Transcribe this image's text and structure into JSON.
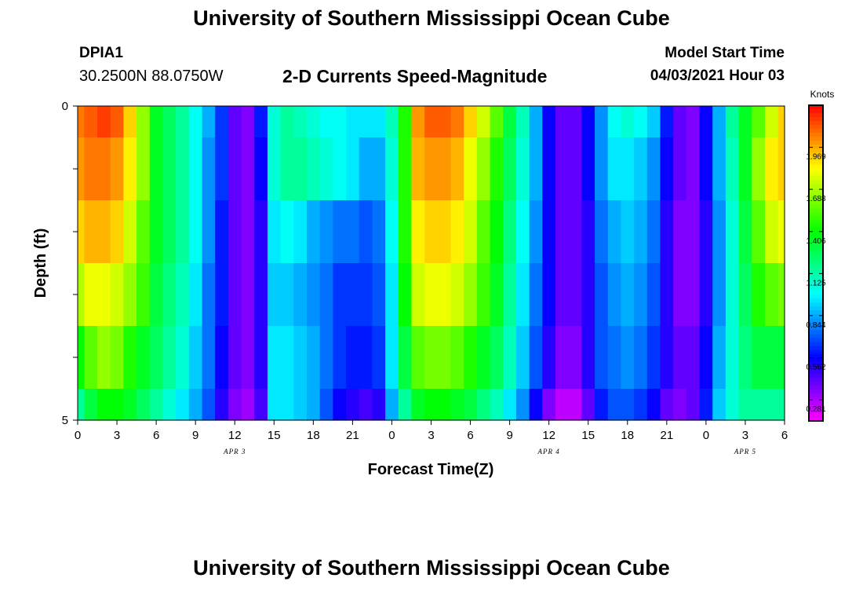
{
  "header": {
    "title": "University of Southern Mississippi Ocean Cube",
    "station_id": "DPIA1",
    "station_coords": "30.2500N  88.0750W",
    "chart_title": "2-D Currents Speed-Magnitude",
    "model_label": "Model Start Time",
    "model_time": "04/03/2021 Hour 03"
  },
  "footer": {
    "title": "University of Southern Mississippi Ocean Cube"
  },
  "chart_data": {
    "type": "heatmap",
    "title": "2-D Currents Speed-Magnitude",
    "xlabel": "Forecast Time(Z)",
    "ylabel": "Depth (ft)",
    "x_tick_labels": [
      "0",
      "3",
      "6",
      "9",
      "12",
      "15",
      "18",
      "21",
      "0",
      "3",
      "6",
      "9",
      "12",
      "15",
      "18",
      "21",
      "0",
      "3",
      "6"
    ],
    "date_labels": [
      "APR 3",
      "APR 4",
      "APR 5"
    ],
    "y_tick_labels": [
      "0",
      "5"
    ],
    "ylim": [
      0,
      5
    ],
    "hours": [
      0,
      1,
      2,
      3,
      4,
      5,
      6,
      7,
      8,
      9,
      10,
      11,
      12,
      13,
      14,
      15,
      16,
      17,
      18,
      19,
      20,
      21,
      22,
      23,
      24,
      25,
      26,
      27,
      28,
      29,
      30,
      31,
      32,
      33,
      34,
      35,
      36,
      37,
      38,
      39,
      40,
      41,
      42,
      43,
      44,
      45,
      46,
      47,
      48,
      49,
      50,
      51,
      52,
      53,
      54
    ],
    "depth_bins_ft": [
      "0-0.5",
      "0.5-1.5",
      "1.5-2.5",
      "2.5-3.5",
      "3.5-4.5",
      "4.5-5"
    ],
    "values_knots": [
      [
        2.05,
        2.1,
        2.15,
        2.1,
        1.9,
        1.65,
        1.35,
        1.25,
        1.15,
        1.0,
        0.85,
        0.65,
        0.4,
        0.35,
        0.6,
        1.05,
        1.15,
        1.1,
        1.05,
        1.0,
        1.0,
        0.95,
        0.95,
        0.95,
        1.1,
        1.45,
        2.0,
        2.1,
        2.1,
        2.05,
        1.9,
        1.75,
        1.55,
        1.3,
        1.1,
        0.85,
        0.55,
        0.4,
        0.4,
        0.55,
        0.8,
        1.0,
        1.05,
        1.0,
        0.9,
        0.6,
        0.4,
        0.35,
        0.55,
        0.85,
        1.15,
        1.35,
        1.55,
        1.75,
        1.9
      ],
      [
        2.0,
        2.05,
        2.05,
        2.0,
        1.85,
        1.65,
        1.35,
        1.25,
        1.15,
        1.0,
        0.8,
        0.65,
        0.4,
        0.35,
        0.55,
        1.05,
        1.15,
        1.15,
        1.1,
        1.05,
        1.0,
        0.95,
        0.85,
        0.85,
        1.05,
        1.45,
        1.95,
        2.0,
        2.0,
        1.95,
        1.8,
        1.65,
        1.45,
        1.25,
        1.05,
        0.85,
        0.55,
        0.4,
        0.4,
        0.55,
        0.8,
        0.95,
        0.95,
        0.9,
        0.8,
        0.55,
        0.4,
        0.35,
        0.55,
        0.85,
        1.1,
        1.35,
        1.65,
        1.85,
        1.9
      ],
      [
        1.9,
        1.95,
        1.95,
        1.9,
        1.75,
        1.55,
        1.35,
        1.25,
        1.15,
        1.0,
        0.8,
        0.6,
        0.4,
        0.35,
        0.5,
        0.95,
        1.0,
        0.95,
        0.85,
        0.8,
        0.75,
        0.75,
        0.7,
        0.75,
        1.0,
        1.45,
        1.85,
        1.9,
        1.9,
        1.85,
        1.75,
        1.55,
        1.4,
        1.2,
        1.0,
        0.8,
        0.55,
        0.4,
        0.4,
        0.5,
        0.75,
        0.85,
        0.9,
        0.85,
        0.75,
        0.5,
        0.35,
        0.35,
        0.5,
        0.8,
        1.05,
        1.3,
        1.55,
        1.75,
        1.8
      ],
      [
        1.7,
        1.8,
        1.8,
        1.75,
        1.65,
        1.5,
        1.3,
        1.2,
        1.1,
        0.95,
        0.75,
        0.6,
        0.4,
        0.35,
        0.5,
        0.9,
        0.9,
        0.85,
        0.8,
        0.75,
        0.65,
        0.65,
        0.65,
        0.7,
        0.95,
        1.4,
        1.75,
        1.8,
        1.8,
        1.75,
        1.65,
        1.5,
        1.35,
        1.15,
        0.95,
        0.75,
        0.55,
        0.4,
        0.4,
        0.5,
        0.7,
        0.8,
        0.85,
        0.8,
        0.7,
        0.5,
        0.35,
        0.35,
        0.5,
        0.8,
        1.05,
        1.25,
        1.45,
        1.55,
        1.6
      ],
      [
        1.4,
        1.55,
        1.65,
        1.6,
        1.45,
        1.35,
        1.25,
        1.15,
        1.05,
        0.9,
        0.75,
        0.55,
        0.4,
        0.35,
        0.5,
        0.95,
        0.95,
        0.9,
        0.85,
        0.75,
        0.65,
        0.6,
        0.6,
        0.65,
        0.95,
        1.3,
        1.55,
        1.6,
        1.6,
        1.55,
        1.45,
        1.35,
        1.25,
        1.1,
        0.9,
        0.7,
        0.5,
        0.35,
        0.35,
        0.5,
        0.7,
        0.75,
        0.8,
        0.75,
        0.65,
        0.5,
        0.4,
        0.4,
        0.55,
        0.85,
        1.05,
        1.2,
        1.3,
        1.3,
        1.3
      ],
      [
        1.15,
        1.3,
        1.4,
        1.4,
        1.35,
        1.25,
        1.15,
        1.05,
        0.95,
        0.85,
        0.7,
        0.5,
        0.35,
        0.3,
        0.45,
        0.95,
        0.95,
        0.9,
        0.85,
        0.7,
        0.55,
        0.5,
        0.45,
        0.5,
        0.85,
        1.15,
        1.35,
        1.4,
        1.4,
        1.35,
        1.3,
        1.2,
        1.1,
        0.95,
        0.8,
        0.55,
        0.35,
        0.25,
        0.25,
        0.4,
        0.6,
        0.7,
        0.7,
        0.65,
        0.55,
        0.4,
        0.35,
        0.4,
        0.6,
        0.9,
        1.05,
        1.15,
        1.15,
        1.15,
        1.15
      ]
    ],
    "colorbar": {
      "unit": "Knots",
      "tick_labels": [
        "1.969",
        "1.688",
        "1.406",
        "1.125",
        "0.844",
        "0.562",
        "0.281"
      ],
      "min": 0.14,
      "max": 2.25
    }
  }
}
